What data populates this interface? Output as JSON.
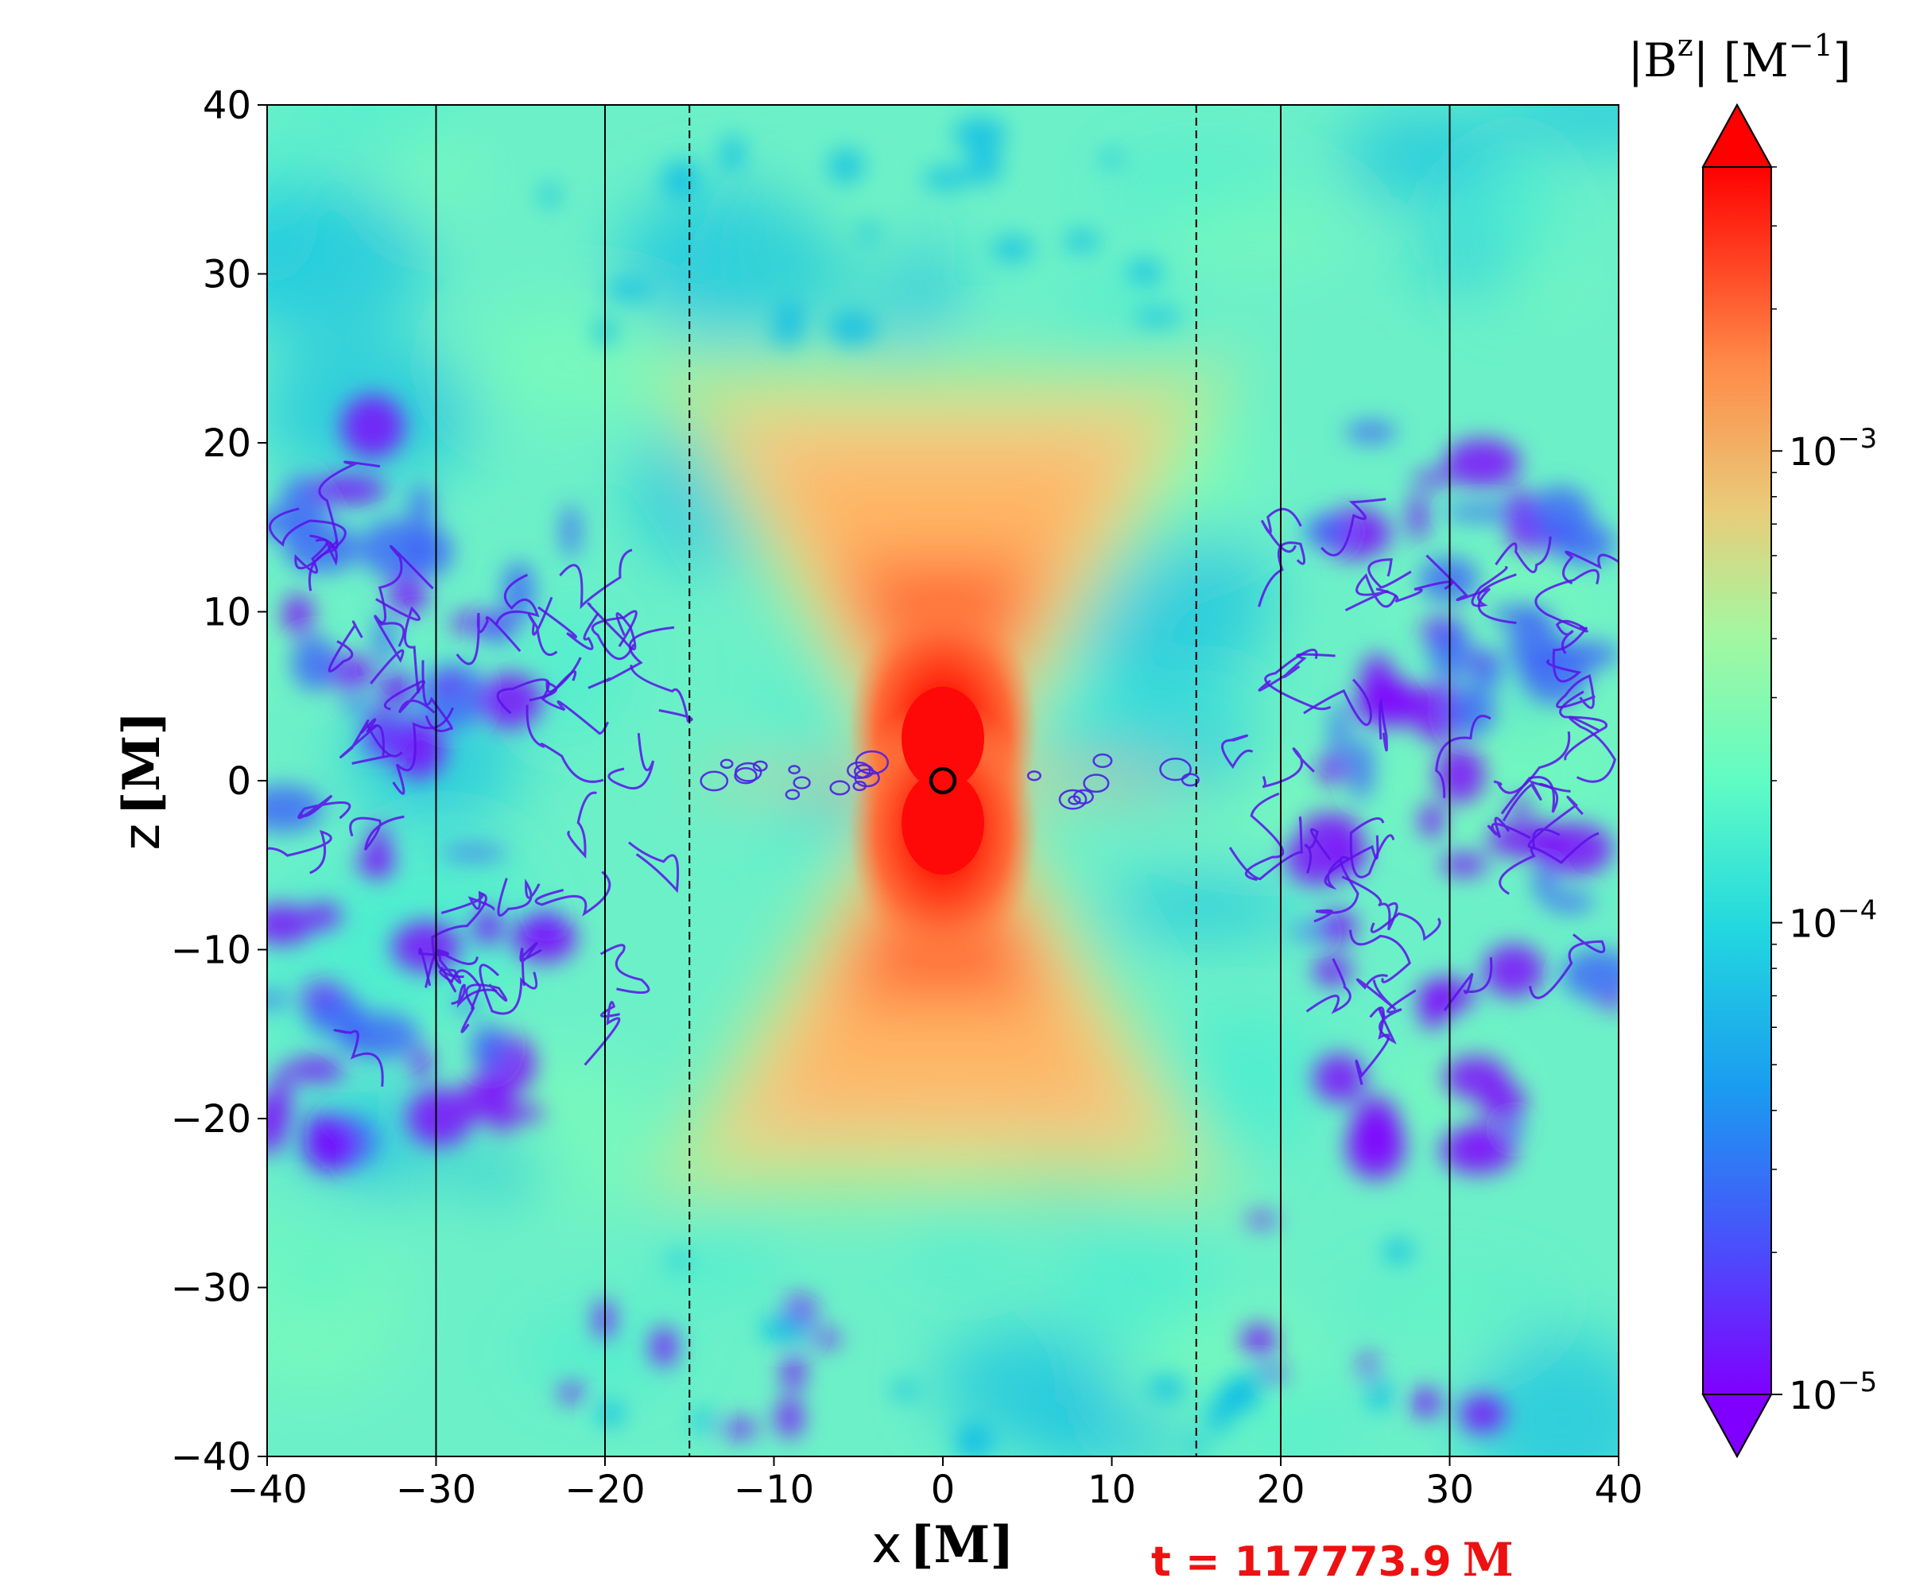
{
  "chart_data": {
    "type": "heatmap",
    "title": "",
    "xlabel": "x",
    "xlabel_unit": "[M]",
    "ylabel": "z",
    "ylabel_unit": "[M]",
    "xlim": [
      -40,
      40
    ],
    "ylim": [
      -40,
      40
    ],
    "xticks": [
      -40,
      -30,
      -20,
      -10,
      0,
      10,
      20,
      30,
      40
    ],
    "yticks": [
      -40,
      -30,
      -20,
      -10,
      0,
      10,
      20,
      30,
      40
    ],
    "xtick_labels": [
      "−40",
      "−30",
      "−20",
      "−10",
      "0",
      "10",
      "20",
      "30",
      "40"
    ],
    "ytick_labels": [
      "−40",
      "−30",
      "−20",
      "−10",
      "0",
      "10",
      "20",
      "30",
      "40"
    ],
    "grid": false,
    "solid_vertical_lines_x": [
      -30,
      -20,
      20,
      30
    ],
    "dashed_vertical_lines_x": [
      -15,
      15
    ],
    "circle_marker": {
      "x": 0,
      "z": 0,
      "radius": 0.7
    },
    "colorbar": {
      "label_text": "|B",
      "label_sup": "z",
      "label_close": "| [M",
      "label_sup2": "−1",
      "label_end": "]",
      "scale": "log",
      "range": [
        1e-05,
        0.004
      ],
      "ticks": [
        1e-05,
        0.0001,
        0.001
      ],
      "tick_bases": [
        "10",
        "10",
        "10"
      ],
      "tick_exps": [
        "−5",
        "−4",
        "−3"
      ],
      "colormap": "rainbow",
      "extend": "both",
      "colors": [
        "#7f00ff",
        "#3f61fa",
        "#00b5eb",
        "#40ecd4",
        "#80ffb4",
        "#c0eb8d",
        "#ffb360",
        "#ff6030",
        "#ff0000"
      ]
    },
    "annotation": {
      "text": "t = 117773.9",
      "unit": "M",
      "color": "#ee1111"
    }
  }
}
